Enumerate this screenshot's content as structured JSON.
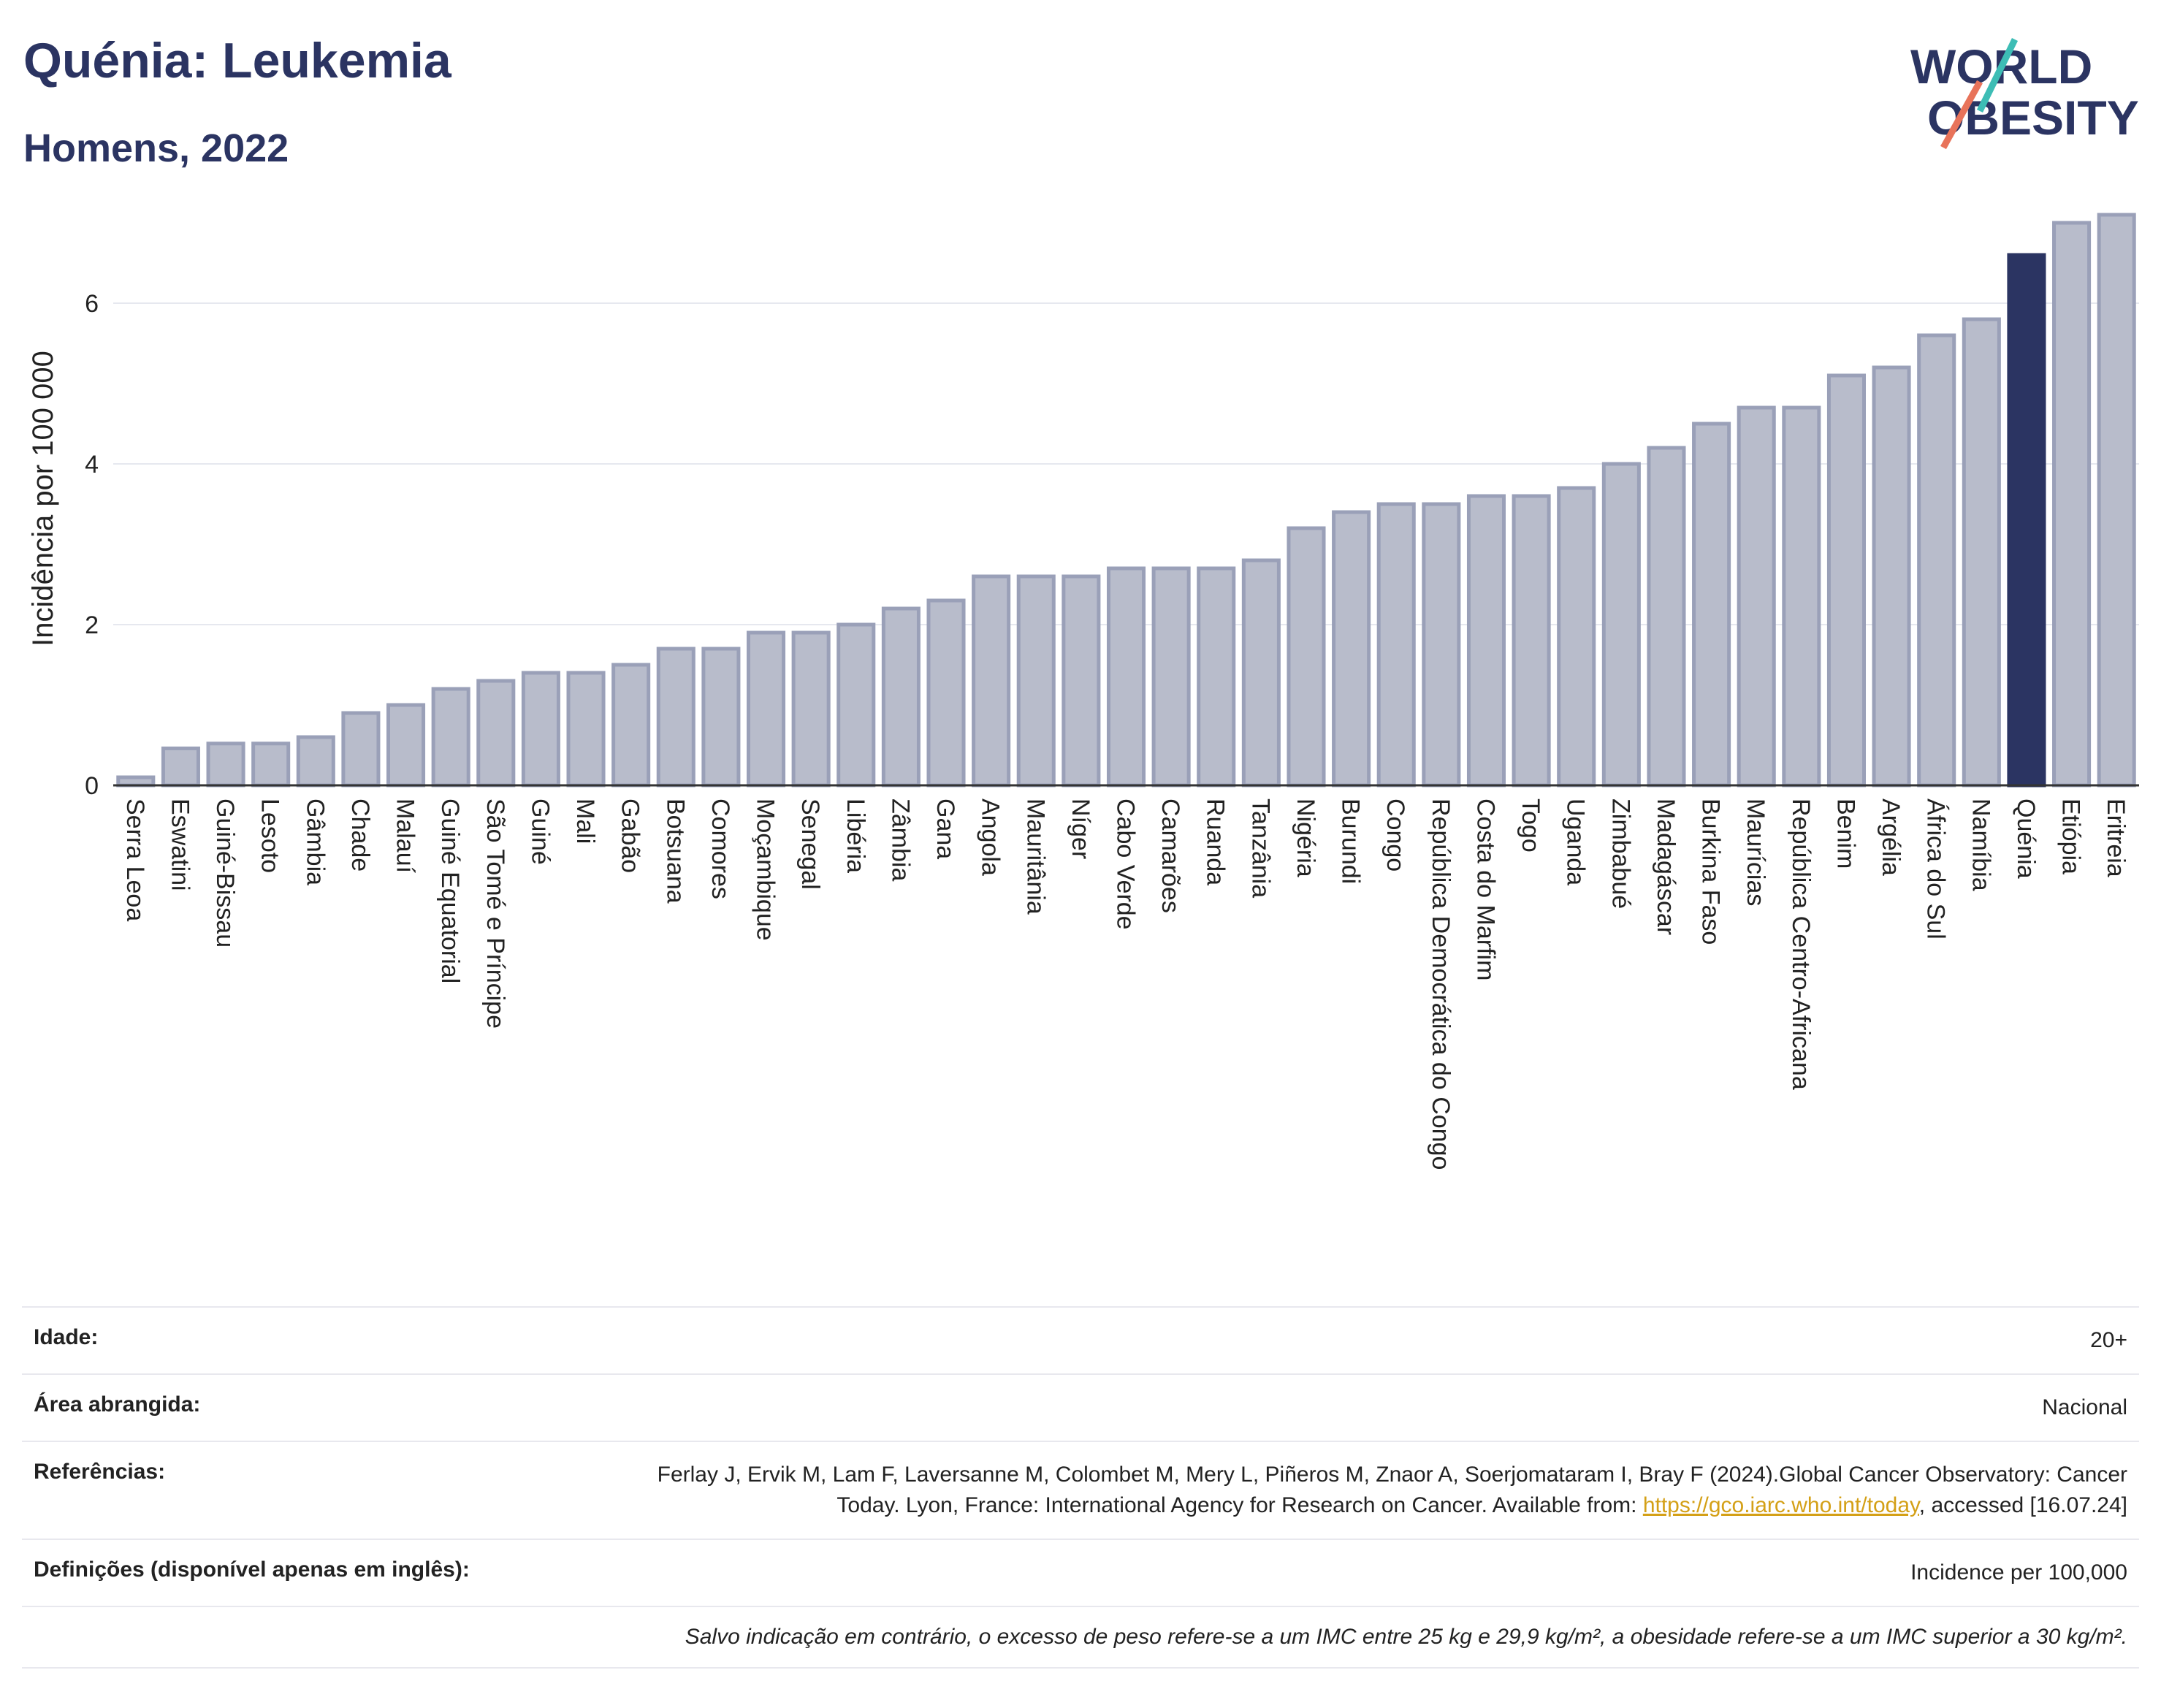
{
  "header": {
    "title": "Quénia: Leukemia",
    "subtitle": "Homens, 2022"
  },
  "logo": {
    "line1": "WORLD",
    "line2": "OBESITY"
  },
  "colors": {
    "bar_default": "#b8bccb",
    "bar_default_stroke": "#9aa0b8",
    "bar_highlight": "#2b3462",
    "title": "#2b3462",
    "logo_slash_teal": "#3dbdb5",
    "logo_slash_coral": "#e8735a"
  },
  "chart_data": {
    "type": "bar",
    "ylabel": "Incidência por 100 000",
    "ylim": [
      0,
      7.5
    ],
    "yticks": [
      0,
      2,
      4,
      6
    ],
    "highlight": "Quénia",
    "grid": true,
    "categories": [
      "Serra Leoa",
      "Eswatini",
      "Guiné-Bissau",
      "Lesoto",
      "Gâmbia",
      "Chade",
      "Malauí",
      "Guiné Equatorial",
      "São Tomé e Príncipe",
      "Guiné",
      "Mali",
      "Gabão",
      "Botsuana",
      "Comores",
      "Moçambique",
      "Senegal",
      "Libéria",
      "Zâmbia",
      "Gana",
      "Angola",
      "Mauritânia",
      "Níger",
      "Cabo Verde",
      "Camarões",
      "Ruanda",
      "Tanzânia",
      "Nigéria",
      "Burundi",
      "Congo",
      "República Democrática do Congo",
      "Costa do Marfim",
      "Togo",
      "Uganda",
      "Zimbabué",
      "Madagáscar",
      "Burkina Faso",
      "Maurícias",
      "República Centro-Africana",
      "Benim",
      "Argélia",
      "África do Sul",
      "Namíbia",
      "Quénia",
      "Etiópia",
      "Eritreia"
    ],
    "values": [
      0.1,
      0.46,
      0.52,
      0.52,
      0.6,
      0.9,
      1.0,
      1.2,
      1.3,
      1.4,
      1.4,
      1.5,
      1.7,
      1.7,
      1.9,
      1.9,
      2.0,
      2.2,
      2.3,
      2.6,
      2.6,
      2.6,
      2.7,
      2.7,
      2.7,
      2.8,
      3.2,
      3.4,
      3.5,
      3.5,
      3.6,
      3.6,
      3.7,
      4.0,
      4.2,
      4.5,
      4.7,
      4.7,
      5.1,
      5.2,
      5.6,
      5.8,
      6.6,
      7.0,
      7.1
    ]
  },
  "info": {
    "age_label": "Idade:",
    "age_value": "20+",
    "area_label": "Área abrangida:",
    "area_value": "Nacional",
    "refs_label": "Referências:",
    "refs_text1": "Ferlay J, Ervik M, Lam F, Laversanne M, Colombet M, Mery L, Piñeros M, Znaor A, Soerjomataram I, Bray F (2024).Global Cancer Observatory: Cancer Today. Lyon, France: International Agency for Research on Cancer. Available from: ",
    "refs_link": "https://gco.iarc.who.int/today",
    "refs_text2": ", accessed [16.07.24]",
    "defs_label": "Definições (disponível apenas em inglês):",
    "defs_value": "Incidence per 100,000",
    "note": "Salvo indicação em contrário, o excesso de peso refere-se a um IMC entre 25 kg e 29,9 kg/m², a obesidade refere-se a um IMC superior a 30 kg/m²."
  }
}
